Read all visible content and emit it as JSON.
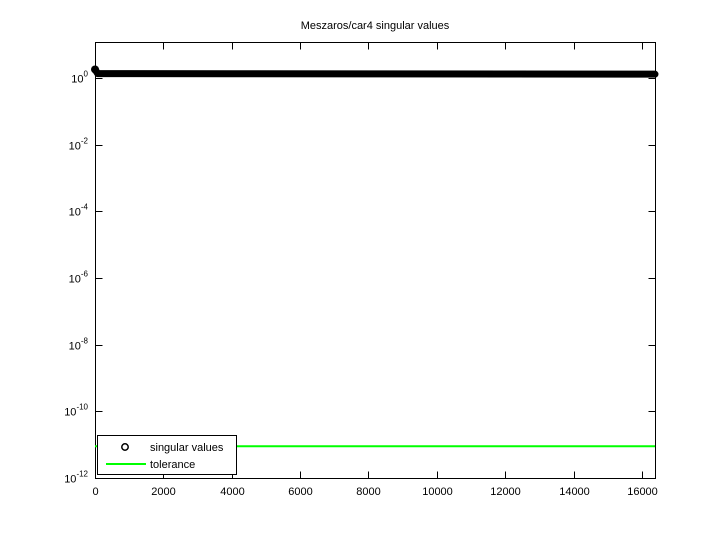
{
  "chart_data": {
    "type": "scatter",
    "title": "Meszaros/car4 singular values",
    "xlabel": "",
    "ylabel": "",
    "x_scale": "linear",
    "y_scale": "log",
    "xlim": [
      0,
      16384
    ],
    "ylim": [
      1e-12,
      12
    ],
    "x_ticks": [
      0,
      2000,
      4000,
      6000,
      8000,
      10000,
      12000,
      14000,
      16000
    ],
    "y_tick_base": "10",
    "y_tick_exponents": [
      0,
      -2,
      -4,
      -6,
      -8,
      -10,
      -12
    ],
    "grid": false,
    "background_color": "#ffffff",
    "axis_color": "#000000",
    "series": [
      {
        "name": "singular values",
        "type": "marker-band",
        "marker": "o",
        "color": "#000000",
        "x": [
          1,
          80,
          4000,
          8000,
          12000,
          16384
        ],
        "y": [
          1.8,
          1.35,
          1.34,
          1.33,
          1.32,
          1.3
        ]
      },
      {
        "name": "tolerance",
        "type": "line",
        "color": "#00ff00",
        "x": [
          0,
          16384
        ],
        "y": [
          9e-12,
          9e-12
        ]
      }
    ],
    "legend": {
      "position": "southwest",
      "entries": [
        {
          "label": "singular values",
          "swatch": "marker",
          "color": "#000000"
        },
        {
          "label": "tolerance",
          "swatch": "line",
          "color": "#00ff00"
        }
      ]
    }
  }
}
